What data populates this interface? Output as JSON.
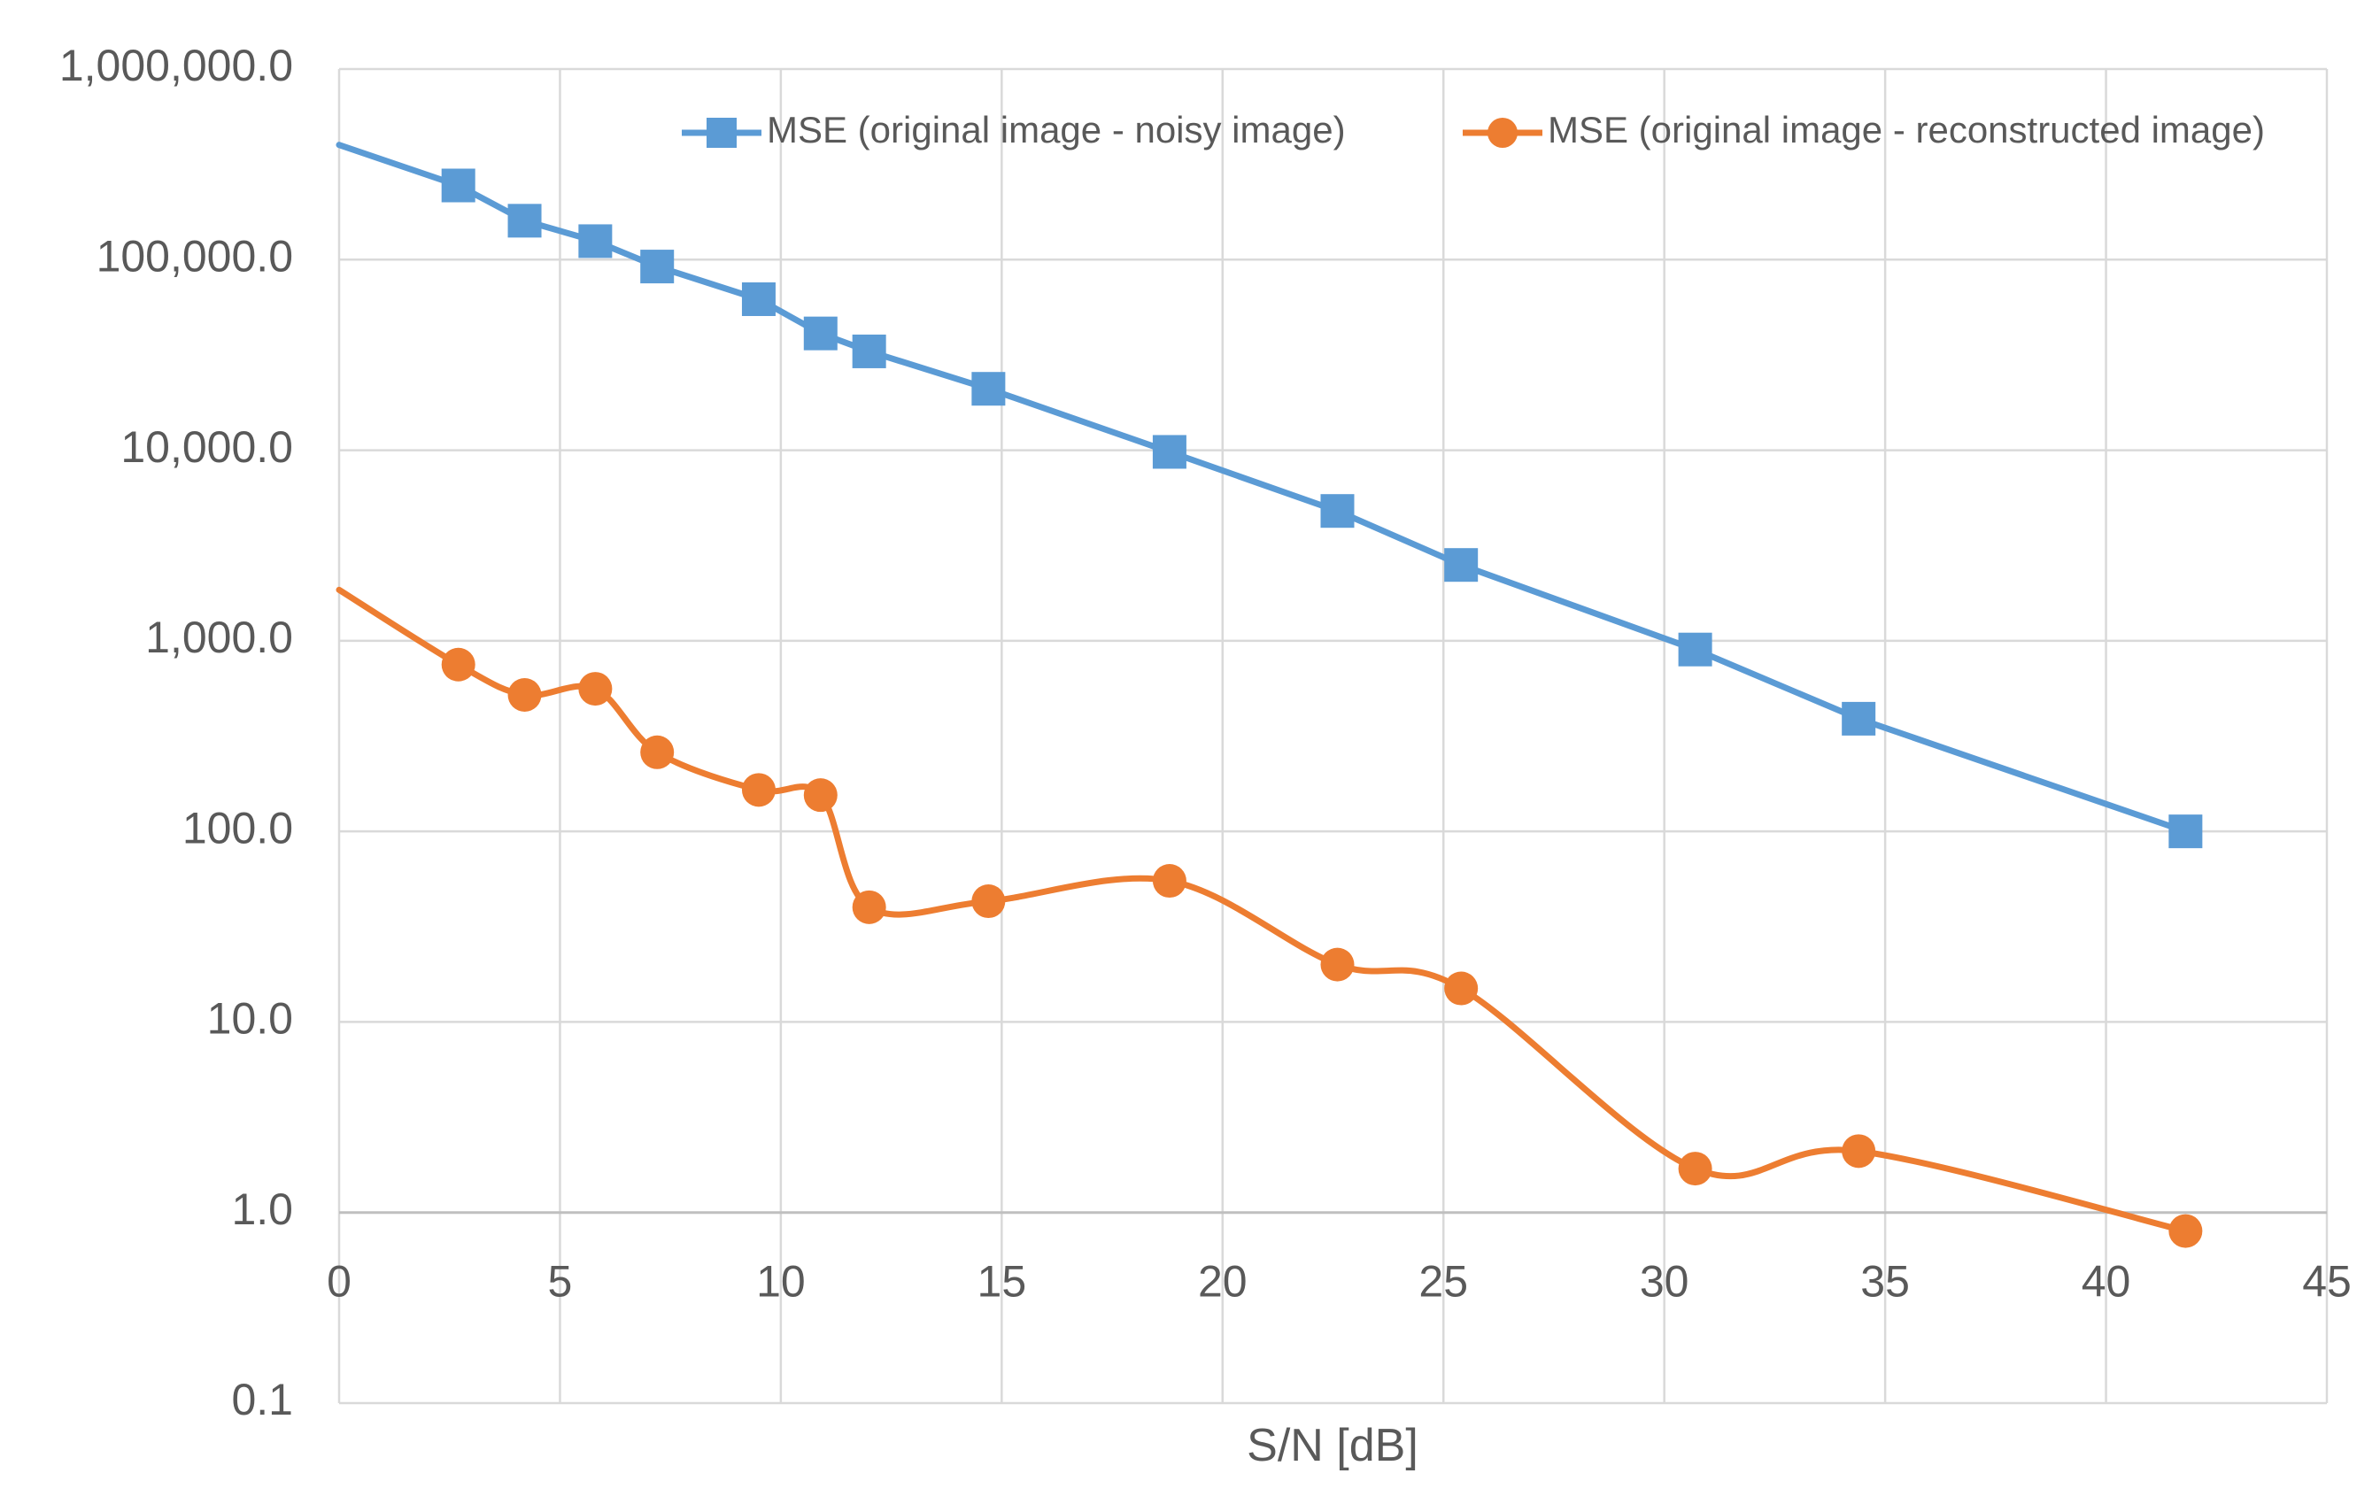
{
  "chart_data": {
    "type": "line",
    "title": "",
    "xlabel": "S/N [dB]",
    "ylabel": "",
    "xlim": [
      0,
      45
    ],
    "ylim": [
      0.1,
      1000000
    ],
    "yscale": "log",
    "x_ticks": [
      0,
      5,
      10,
      15,
      20,
      25,
      30,
      35,
      40,
      45
    ],
    "x_tick_labels": [
      "0",
      "5",
      "10",
      "15",
      "20",
      "25",
      "30",
      "35",
      "40",
      "45"
    ],
    "y_ticks": [
      0.1,
      1,
      10,
      100,
      1000,
      10000,
      100000,
      1000000
    ],
    "y_tick_labels": [
      "0.1",
      "1.0",
      "10.0",
      "100.0",
      "1,000.0",
      "10,000.0",
      "100,000.0",
      "1,000,000.0"
    ],
    "grid": true,
    "legend_position": "top",
    "series": [
      {
        "name": "MSE (original image - noisy image)",
        "color": "#5B9BD5",
        "marker": "square",
        "smooth": false,
        "line_start": {
          "x": 0,
          "y": 400000
        },
        "x": [
          2.7,
          4.2,
          5.8,
          7.2,
          9.5,
          10.9,
          12.0,
          14.7,
          18.8,
          22.6,
          25.4,
          30.7,
          34.4,
          41.8
        ],
        "y": [
          245000,
          160000,
          125000,
          92000,
          62000,
          41000,
          33000,
          21000,
          9800,
          4800,
          2500,
          900,
          390,
          100
        ]
      },
      {
        "name": "MSE (original image - reconstructed image)",
        "color": "#ED7D31",
        "marker": "circle",
        "smooth": true,
        "line_start": {
          "x": 0,
          "y": 1850
        },
        "x": [
          2.7,
          4.2,
          5.8,
          7.2,
          9.5,
          10.9,
          12.0,
          14.7,
          18.8,
          22.6,
          25.4,
          30.7,
          34.4,
          41.8
        ],
        "y": [
          750,
          520,
          560,
          260,
          165,
          155,
          40,
          43,
          55,
          20,
          15,
          1.7,
          2.1,
          0.8
        ]
      }
    ]
  }
}
